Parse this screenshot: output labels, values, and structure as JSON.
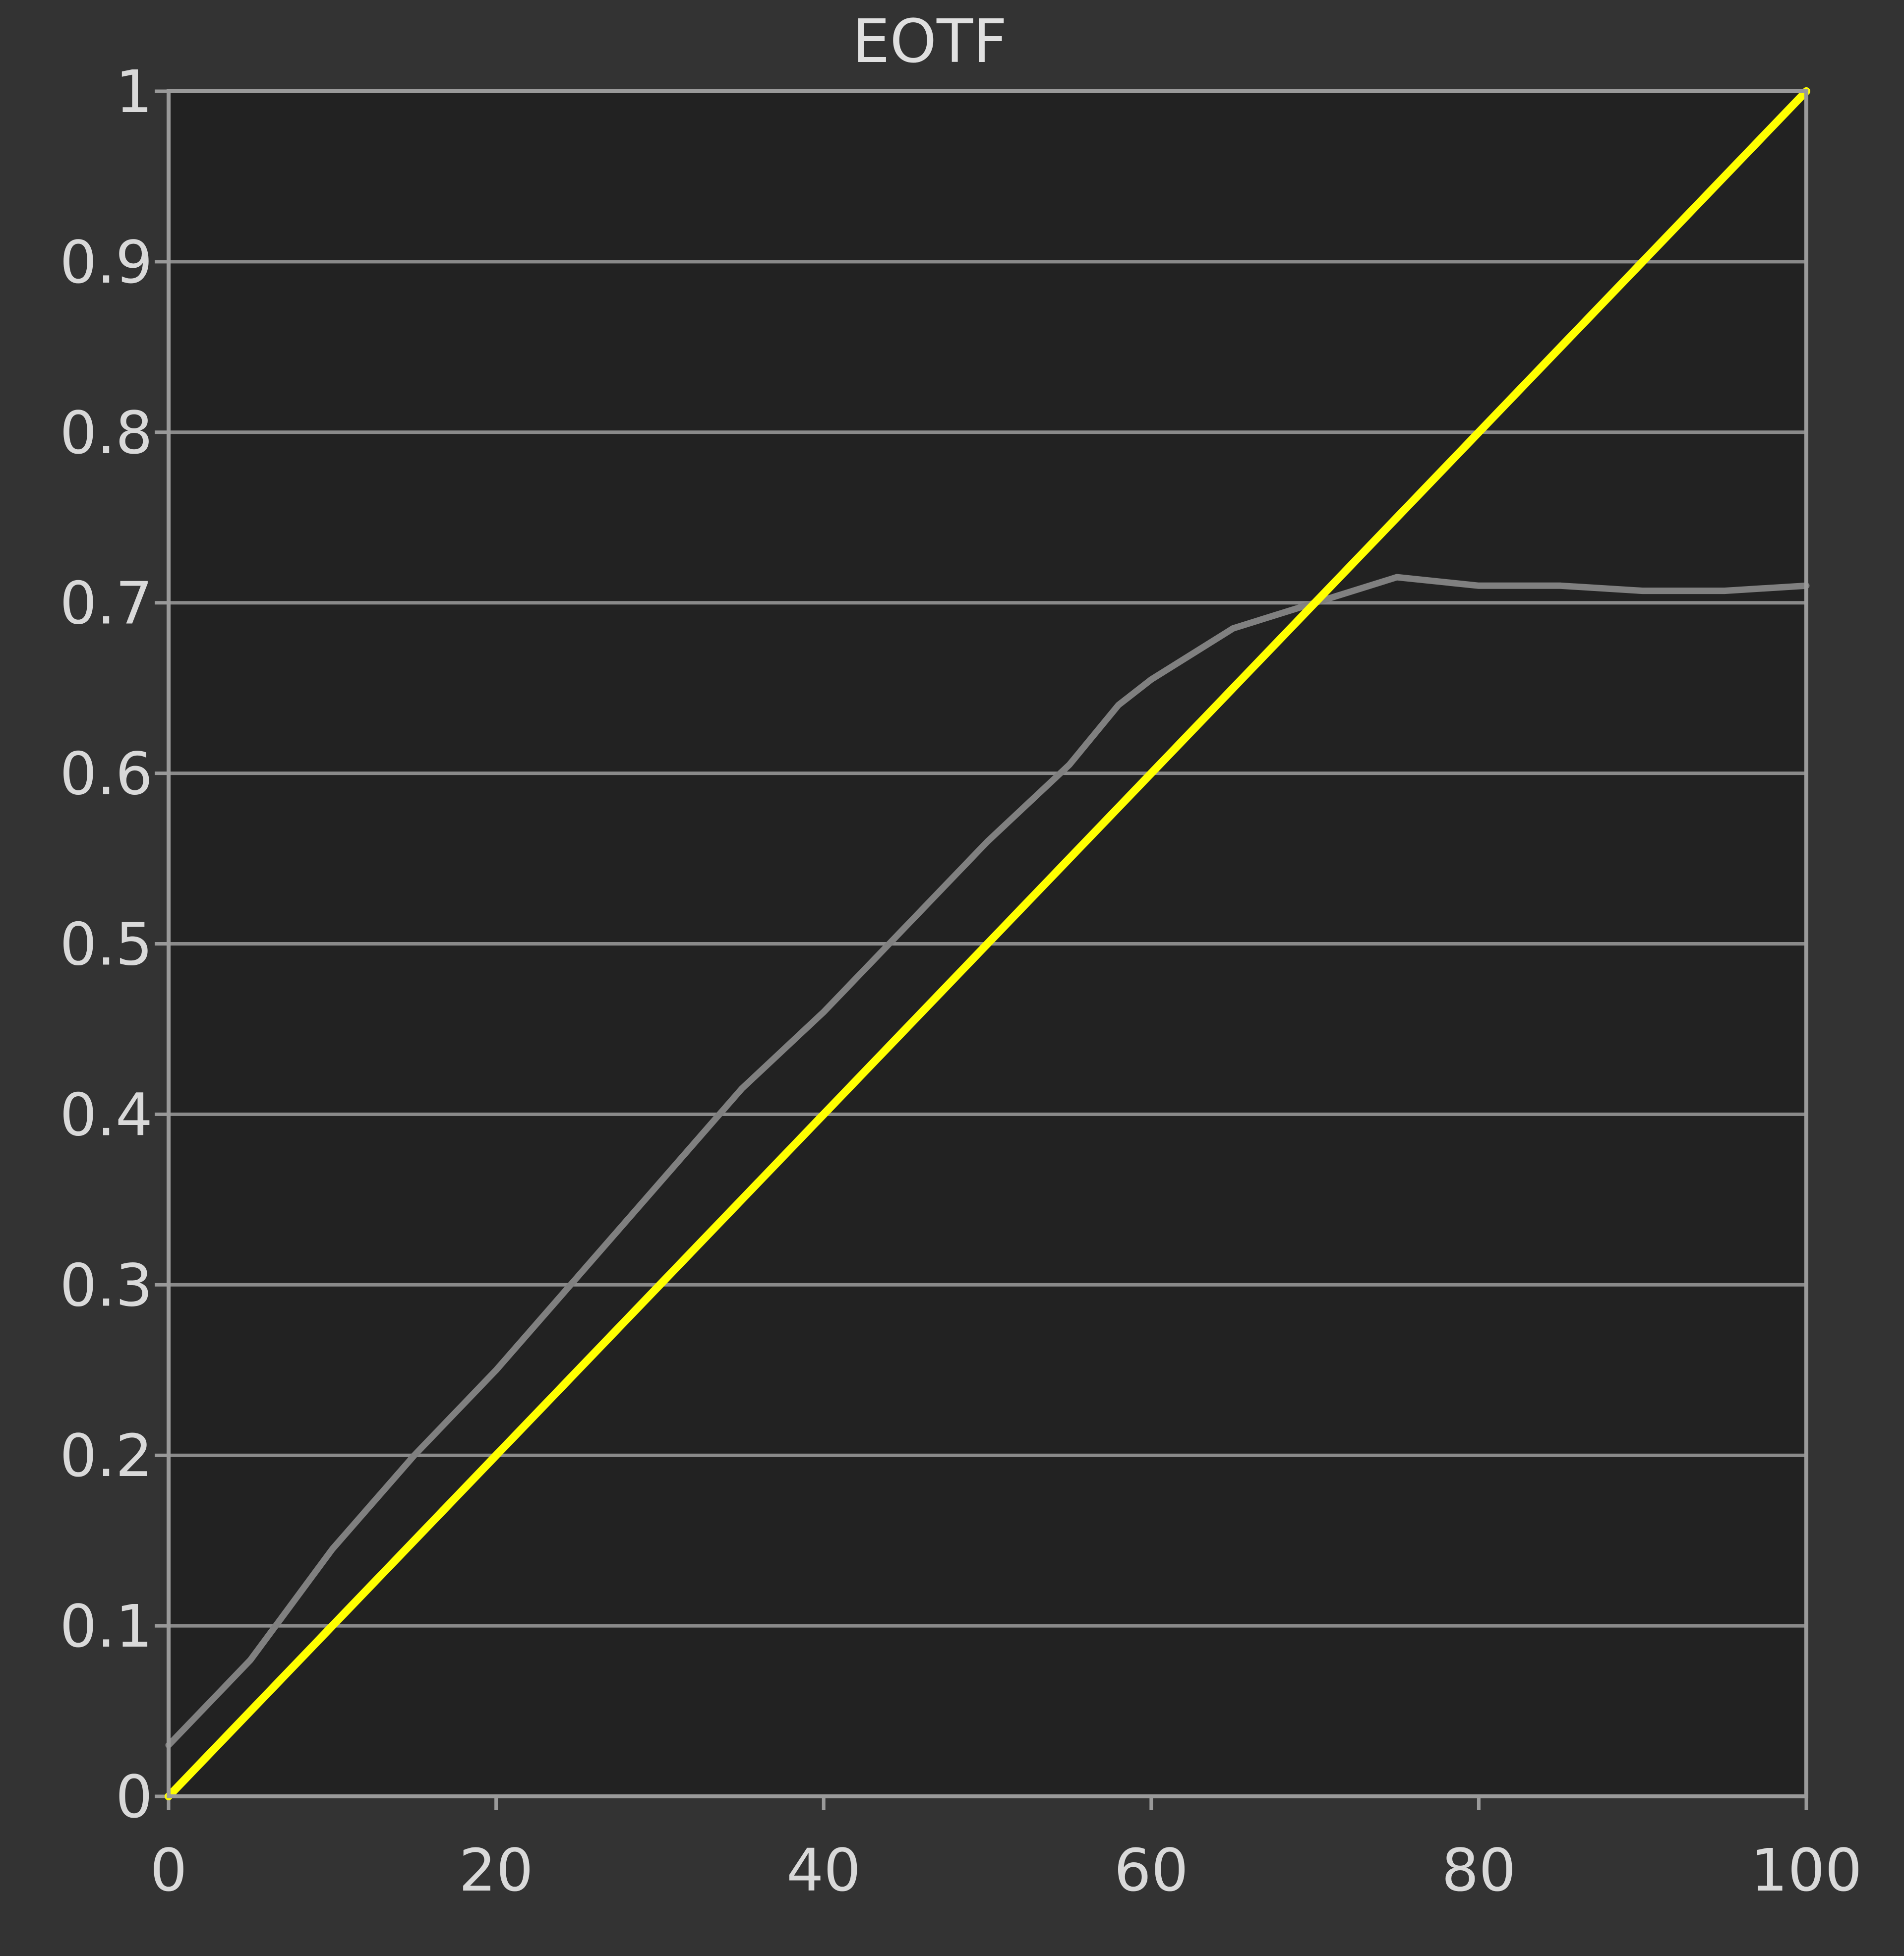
{
  "chart_data": {
    "type": "line",
    "title": "EOTF",
    "xlabel": "",
    "ylabel": "",
    "xlim": [
      0,
      100
    ],
    "ylim": [
      0,
      1
    ],
    "x_ticks": [
      "0",
      "20",
      "40",
      "60",
      "80",
      "100"
    ],
    "y_ticks": [
      "0",
      "0.1",
      "0.2",
      "0.3",
      "0.4",
      "0.5",
      "0.6",
      "0.7",
      "0.8",
      "0.9",
      "1"
    ],
    "grid": true,
    "colors": {
      "background": "#333333",
      "plot_bg": "#222222",
      "grid": "#8a8a8a",
      "measured": "#808080",
      "target": "#ffff00"
    },
    "series": [
      {
        "color": "#808080",
        "x": [
          0,
          5,
          10,
          15,
          20,
          25,
          30,
          35,
          40,
          45,
          50,
          55,
          58,
          60,
          65,
          70,
          75,
          80,
          85,
          90,
          95,
          100
        ],
        "y": [
          0.03,
          0.08,
          0.145,
          0.2,
          0.25,
          0.305,
          0.36,
          0.415,
          0.46,
          0.51,
          0.56,
          0.605,
          0.64,
          0.655,
          0.685,
          0.7,
          0.715,
          0.71,
          0.71,
          0.707,
          0.707,
          0.71
        ]
      },
      {
        "color": "#ffff00",
        "x": [
          0,
          10,
          20,
          30,
          40,
          50,
          60,
          70,
          80,
          90,
          100
        ],
        "y": [
          0.0,
          0.1,
          0.2,
          0.3,
          0.4,
          0.5,
          0.6,
          0.7,
          0.8,
          0.9,
          1.0
        ]
      }
    ]
  }
}
